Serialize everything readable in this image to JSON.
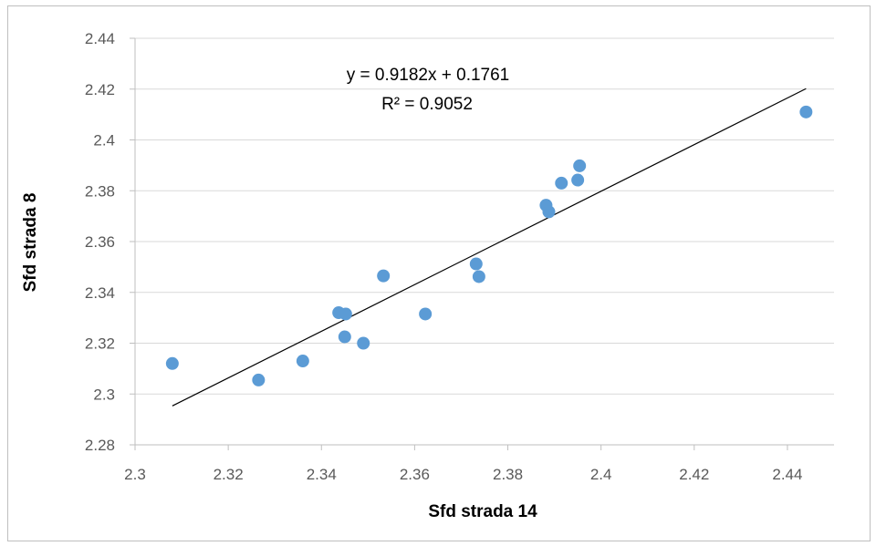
{
  "chart_data": {
    "type": "scatter",
    "xlabel": "Sfd strada 14",
    "ylabel": "Sfd strada 8",
    "xlim": [
      2.3,
      2.45
    ],
    "ylim": [
      2.28,
      2.44
    ],
    "x_ticks": [
      "2.3",
      "2.32",
      "2.34",
      "2.36",
      "2.38",
      "2.4",
      "2.42",
      "2.44"
    ],
    "y_ticks": [
      "2.28",
      "2.3",
      "2.32",
      "2.34",
      "2.36",
      "2.38",
      "2.4",
      "2.42",
      "2.44"
    ],
    "grid": "horizontal",
    "legend": "none",
    "points": [
      {
        "x": 2.308,
        "y": 2.312
      },
      {
        "x": 2.3265,
        "y": 2.3055
      },
      {
        "x": 2.336,
        "y": 2.313
      },
      {
        "x": 2.3437,
        "y": 2.332
      },
      {
        "x": 2.3452,
        "y": 2.3315
      },
      {
        "x": 2.345,
        "y": 2.3225
      },
      {
        "x": 2.349,
        "y": 2.32
      },
      {
        "x": 2.3533,
        "y": 2.3465
      },
      {
        "x": 2.3623,
        "y": 2.3315
      },
      {
        "x": 2.3732,
        "y": 2.3512
      },
      {
        "x": 2.3738,
        "y": 2.3462
      },
      {
        "x": 2.3882,
        "y": 2.3743
      },
      {
        "x": 2.3888,
        "y": 2.3717
      },
      {
        "x": 2.3915,
        "y": 2.383
      },
      {
        "x": 2.395,
        "y": 2.3842
      },
      {
        "x": 2.3954,
        "y": 2.3898
      },
      {
        "x": 2.444,
        "y": 2.411
      }
    ],
    "trendline": {
      "slope": 0.9182,
      "intercept": 0.1761,
      "x_range": [
        2.308,
        2.444
      ]
    },
    "annotations": [
      "y = 0.9182x + 0.1761",
      "R² = 0.9052"
    ],
    "colors": {
      "marker": "#5b9bd5",
      "trendline": "#000000",
      "grid": "#d9d9d9",
      "axis": "#bfbfbf",
      "tick_text": "#595959"
    }
  }
}
